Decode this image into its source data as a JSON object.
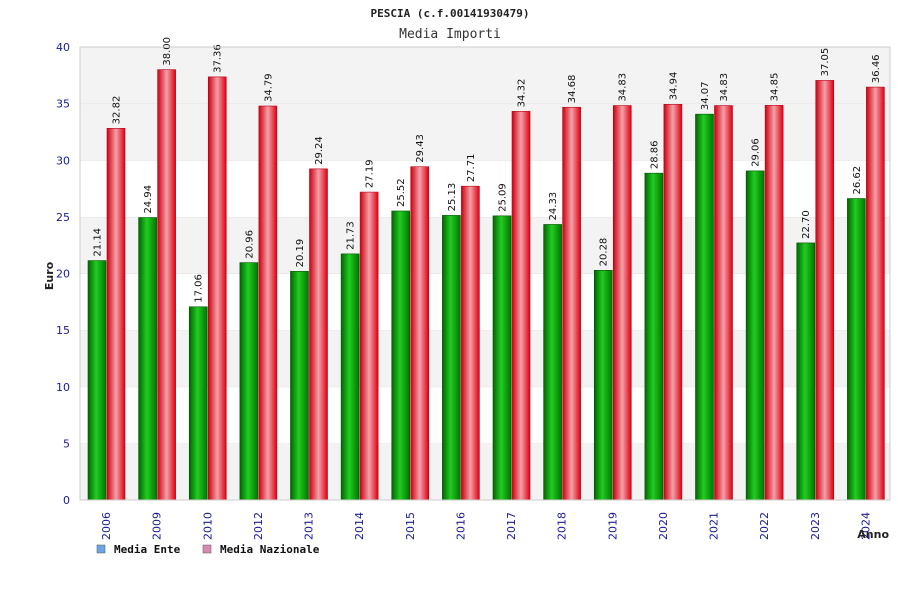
{
  "chart_data": {
    "type": "bar",
    "title": "PESCIA (c.f.00141930479)",
    "subtitle": "Media Importi",
    "xlabel": "Anno",
    "ylabel": "Euro",
    "ylim": [
      0,
      40
    ],
    "yticks": [
      0,
      5,
      10,
      15,
      20,
      25,
      30,
      35,
      40
    ],
    "grid": true,
    "legend_position": "bottom-left",
    "categories": [
      "2006",
      "2009",
      "2010",
      "2012",
      "2013",
      "2014",
      "2015",
      "2016",
      "2017",
      "2018",
      "2019",
      "2020",
      "2021",
      "2022",
      "2023",
      "2024"
    ],
    "series": [
      {
        "name": "Media Ente",
        "color": "#00aa00",
        "legend_color": "#6aa6e8",
        "values": [
          21.14,
          24.94,
          17.06,
          20.96,
          20.19,
          21.73,
          25.52,
          25.13,
          25.09,
          24.33,
          20.28,
          28.86,
          34.07,
          29.06,
          22.7,
          26.62
        ],
        "labels": [
          "21.14",
          "24.94",
          "17.06",
          "20.96",
          "20.19",
          "21.73",
          "25.52",
          "25.13",
          "25.09",
          "24.33",
          "20.28",
          "28.86",
          "34.07",
          "29.06",
          "22.70",
          "26.62"
        ]
      },
      {
        "name": "Media Nazionale",
        "color": "#ee1122",
        "legend_color": "#d98ab0",
        "values": [
          32.82,
          38.0,
          37.36,
          34.79,
          29.24,
          27.19,
          29.43,
          27.71,
          34.32,
          34.68,
          34.83,
          34.94,
          34.83,
          34.85,
          37.05,
          36.46
        ],
        "labels": [
          "32.82",
          "38.00",
          "37.36",
          "34.79",
          "29.24",
          "27.19",
          "29.43",
          "27.71",
          "34.32",
          "34.68",
          "34.83",
          "34.94",
          "34.83",
          "34.85",
          "37.05",
          "36.46"
        ]
      }
    ]
  }
}
